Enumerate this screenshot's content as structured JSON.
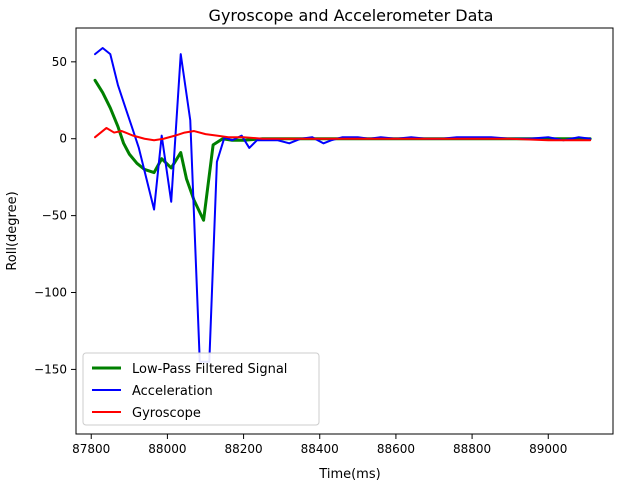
{
  "chart_data": {
    "type": "line",
    "title": "Gyroscope and Accelerometer Data",
    "xlabel": "Time(ms)",
    "ylabel": "Roll(degree)",
    "xlim": [
      87760,
      89170
    ],
    "ylim": [
      -192,
      72
    ],
    "xticks": [
      87800,
      88000,
      88200,
      88400,
      88600,
      88800,
      89000
    ],
    "yticks": [
      50,
      0,
      -50,
      -100,
      -150
    ],
    "grid": false,
    "legend_position": "lower-left",
    "series": [
      {
        "name": "Low-Pass Filtered Signal",
        "color": "#008000",
        "x": [
          87810,
          87830,
          87850,
          87870,
          87885,
          87900,
          87920,
          87940,
          87965,
          87985,
          88010,
          88035,
          88050,
          88070,
          88095,
          88120,
          88145,
          88170,
          88200,
          88250,
          88300,
          88350,
          88400,
          88500,
          88600,
          88700,
          88800,
          88900,
          89000,
          89110
        ],
        "y": [
          38,
          30,
          20,
          8,
          -3,
          -10,
          -16,
          -20,
          -22,
          -13,
          -19,
          -9,
          -26,
          -40,
          -53,
          -4,
          0,
          -1,
          -1,
          0,
          0,
          0,
          0,
          0,
          0,
          0,
          0,
          0,
          0,
          0
        ]
      },
      {
        "name": "Acceleration",
        "color": "#0000ff",
        "x": [
          87810,
          87830,
          87850,
          87870,
          87890,
          87905,
          87925,
          87945,
          87965,
          87985,
          88010,
          88035,
          88060,
          88085,
          88095,
          88110,
          88130,
          88150,
          88170,
          88195,
          88215,
          88235,
          88270,
          88290,
          88320,
          88350,
          88380,
          88410,
          88430,
          88460,
          88500,
          88530,
          88560,
          88600,
          88640,
          88680,
          88720,
          88760,
          88800,
          88850,
          88900,
          88950,
          89000,
          89040,
          89080,
          89110
        ],
        "y": [
          55,
          59,
          55,
          35,
          20,
          9,
          -6,
          -26,
          -46,
          2,
          -41,
          55,
          12,
          -145,
          -145,
          -145,
          -15,
          1,
          -1,
          2,
          -6,
          -1,
          -1,
          -1,
          -3,
          0,
          1,
          -3,
          -1,
          1,
          1,
          0,
          1,
          0,
          1,
          0,
          0,
          1,
          1,
          1,
          0,
          0,
          1,
          -1,
          1,
          0
        ]
      },
      {
        "name": "Gyroscope",
        "color": "#ff0000",
        "x": [
          87810,
          87840,
          87860,
          87880,
          87910,
          87940,
          87965,
          87990,
          88020,
          88045,
          88070,
          88100,
          88130,
          88160,
          88200,
          88250,
          88300,
          88400,
          88500,
          88600,
          88700,
          88800,
          88900,
          89000,
          89110
        ],
        "y": [
          1,
          7,
          4,
          5,
          2,
          0,
          -1,
          0,
          2,
          4,
          5,
          3,
          2,
          1,
          1,
          0,
          0,
          0,
          0,
          0,
          0,
          0,
          0,
          -1,
          -1
        ]
      }
    ]
  }
}
